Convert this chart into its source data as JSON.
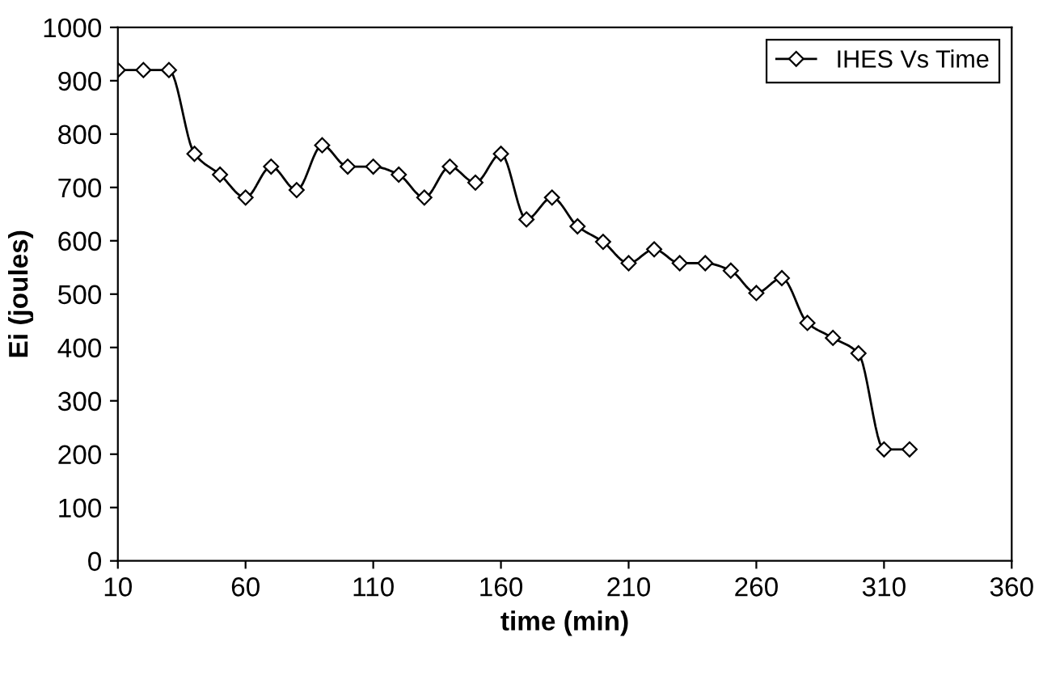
{
  "chart_data": {
    "type": "line",
    "xlabel": "time (min)",
    "ylabel": "Ei (joules)",
    "x": [
      10,
      20,
      30,
      40,
      50,
      60,
      70,
      80,
      90,
      100,
      110,
      120,
      130,
      140,
      150,
      160,
      170,
      180,
      190,
      200,
      210,
      220,
      230,
      240,
      250,
      260,
      270,
      280,
      290,
      300,
      310,
      320
    ],
    "series": [
      {
        "name": "IHES Vs Time",
        "color": "#000000",
        "values": [
          920,
          920,
          920,
          763,
          724,
          681,
          739,
          695,
          779,
          739,
          739,
          724,
          681,
          739,
          709,
          763,
          640,
          681,
          627,
          598,
          558,
          584,
          558,
          558,
          544,
          502,
          530,
          446,
          418,
          389,
          209,
          209
        ]
      }
    ],
    "xlim": [
      10,
      360
    ],
    "xticks": [
      10,
      60,
      110,
      160,
      210,
      260,
      310,
      360
    ],
    "ylim": [
      0,
      1000
    ],
    "yticks": [
      0,
      100,
      200,
      300,
      400,
      500,
      600,
      700,
      800,
      900,
      1000
    ],
    "grid": false,
    "legend": "top right",
    "marker": "diamond",
    "line_style": "solid"
  }
}
